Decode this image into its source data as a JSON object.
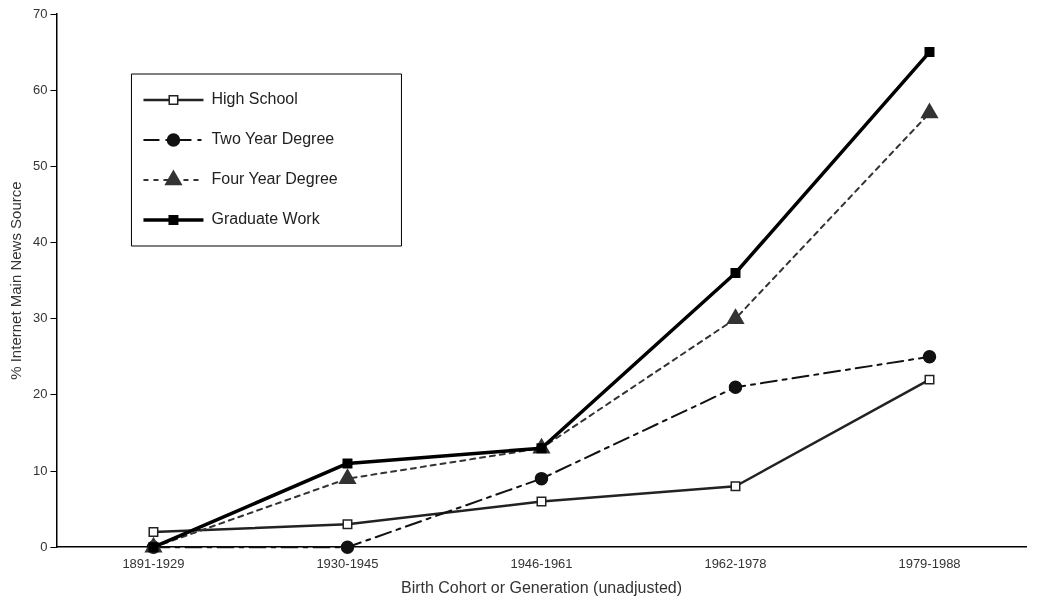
{
  "chart_data": {
    "type": "line",
    "xlabel": "Birth Cohort or Generation (unadjusted)",
    "ylabel": "% Internet Main News Source",
    "categories": [
      "1891-1929",
      "1930-1945",
      "1946-1961",
      "1962-1978",
      "1979-1988"
    ],
    "series": [
      {
        "name": "High School",
        "color": "#222222",
        "marker": "square",
        "line_style": "solid",
        "values": [
          2,
          3,
          6,
          8,
          22
        ]
      },
      {
        "name": "Two Year Degree",
        "color": "#111111",
        "marker": "circle",
        "line_style": "dashed",
        "values": [
          0,
          0,
          9,
          21,
          25
        ]
      },
      {
        "name": "Four Year Degree",
        "color": "#333333",
        "marker": "triangle",
        "line_style": "dotted",
        "values": [
          0,
          9,
          13,
          30,
          57
        ]
      },
      {
        "name": "Graduate Work",
        "color": "#000000",
        "marker": "square",
        "line_style": "solid",
        "values": [
          0,
          11,
          13,
          36,
          65
        ]
      }
    ],
    "ylim": [
      0,
      70
    ],
    "yticks": [
      0,
      10,
      20,
      30,
      40,
      50,
      60,
      70
    ],
    "grid": false,
    "legend": "top left"
  }
}
